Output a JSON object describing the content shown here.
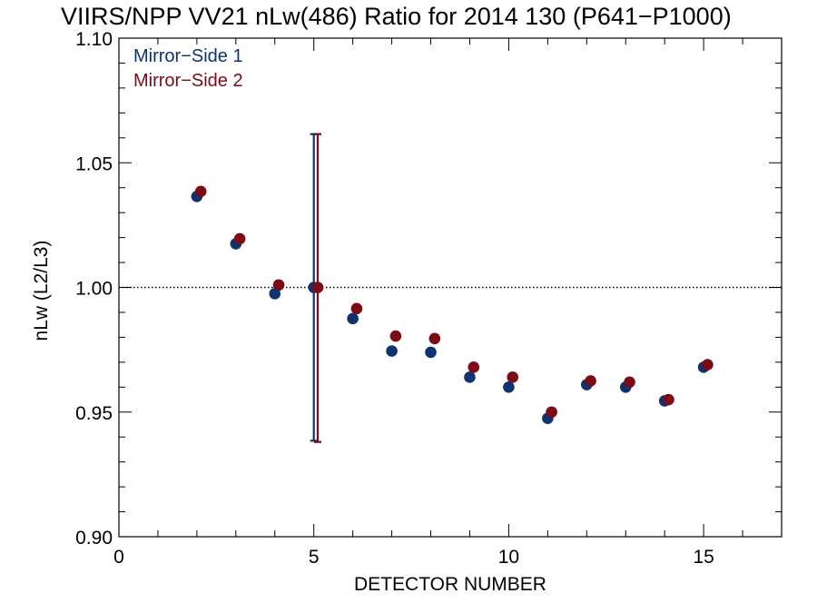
{
  "chart_data": {
    "type": "scatter",
    "title": "VIIRS/NPP VV21 nLw(486) Ratio for 2014 130 (P641−P1000)",
    "xlabel": "DETECTOR NUMBER",
    "ylabel": "nLw (L2/L3)",
    "xlim": [
      0,
      17
    ],
    "ylim": [
      0.9,
      1.1
    ],
    "x_ticks": [
      "0",
      "5",
      "10",
      "15"
    ],
    "y_ticks": [
      "0.90",
      "0.95",
      "1.00",
      "1.05",
      "1.10"
    ],
    "reference_line": 1.0,
    "legend_position": "top-left",
    "series": [
      {
        "name": "Mirror−Side 1",
        "color": "#0d3470",
        "x": [
          2,
          3,
          4,
          5,
          6,
          7,
          8,
          9,
          10,
          11,
          12,
          13,
          14,
          15
        ],
        "values": [
          1.0365,
          1.0175,
          0.9975,
          1.0,
          0.9875,
          0.9745,
          0.974,
          0.964,
          0.96,
          0.9475,
          0.961,
          0.96,
          0.9545,
          0.968
        ],
        "error_bar": {
          "x": 5,
          "low": 0.9385,
          "high": 1.0615
        }
      },
      {
        "name": "Mirror−Side 2",
        "color": "#7b0b14",
        "x": [
          2.1,
          3.1,
          4.1,
          5.1,
          6.1,
          7.1,
          8.1,
          9.1,
          10.1,
          11.1,
          12.1,
          13.1,
          14.1,
          15.1
        ],
        "values": [
          1.0385,
          1.0195,
          1.001,
          1.0,
          0.9915,
          0.9805,
          0.9795,
          0.968,
          0.964,
          0.95,
          0.9625,
          0.962,
          0.955,
          0.969
        ],
        "error_bar": {
          "x": 5.1,
          "low": 0.938,
          "high": 1.0615
        }
      }
    ]
  }
}
